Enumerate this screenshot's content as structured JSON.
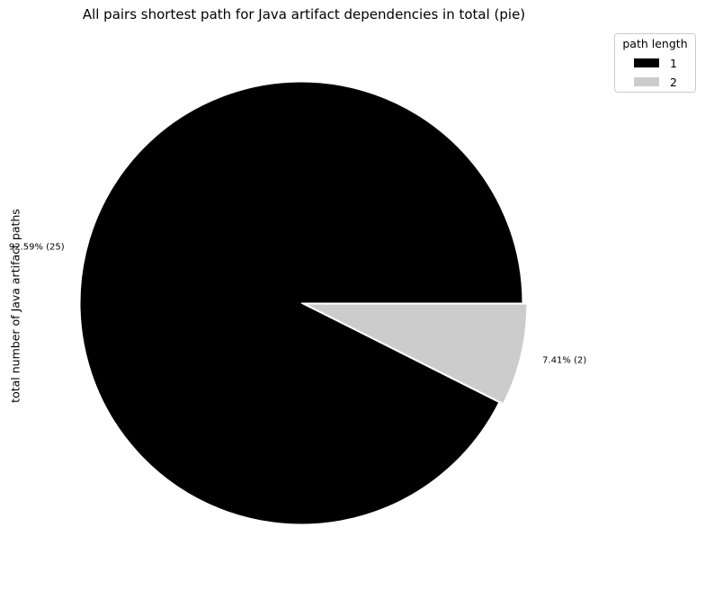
{
  "chart_data": {
    "type": "pie",
    "title": "All pairs shortest path for Java artifact dependencies in total (pie)",
    "ylabel": "total number of Java artifact paths",
    "legend": {
      "title": "path length",
      "placement": "top-right-outside"
    },
    "slices": [
      {
        "name": "1",
        "value": 25,
        "label": "92.59% (25)",
        "color": "#000000",
        "explode": false
      },
      {
        "name": "2",
        "value": 2,
        "label": "7.41% (2)",
        "color": "#cccccc",
        "explode": true
      }
    ]
  }
}
